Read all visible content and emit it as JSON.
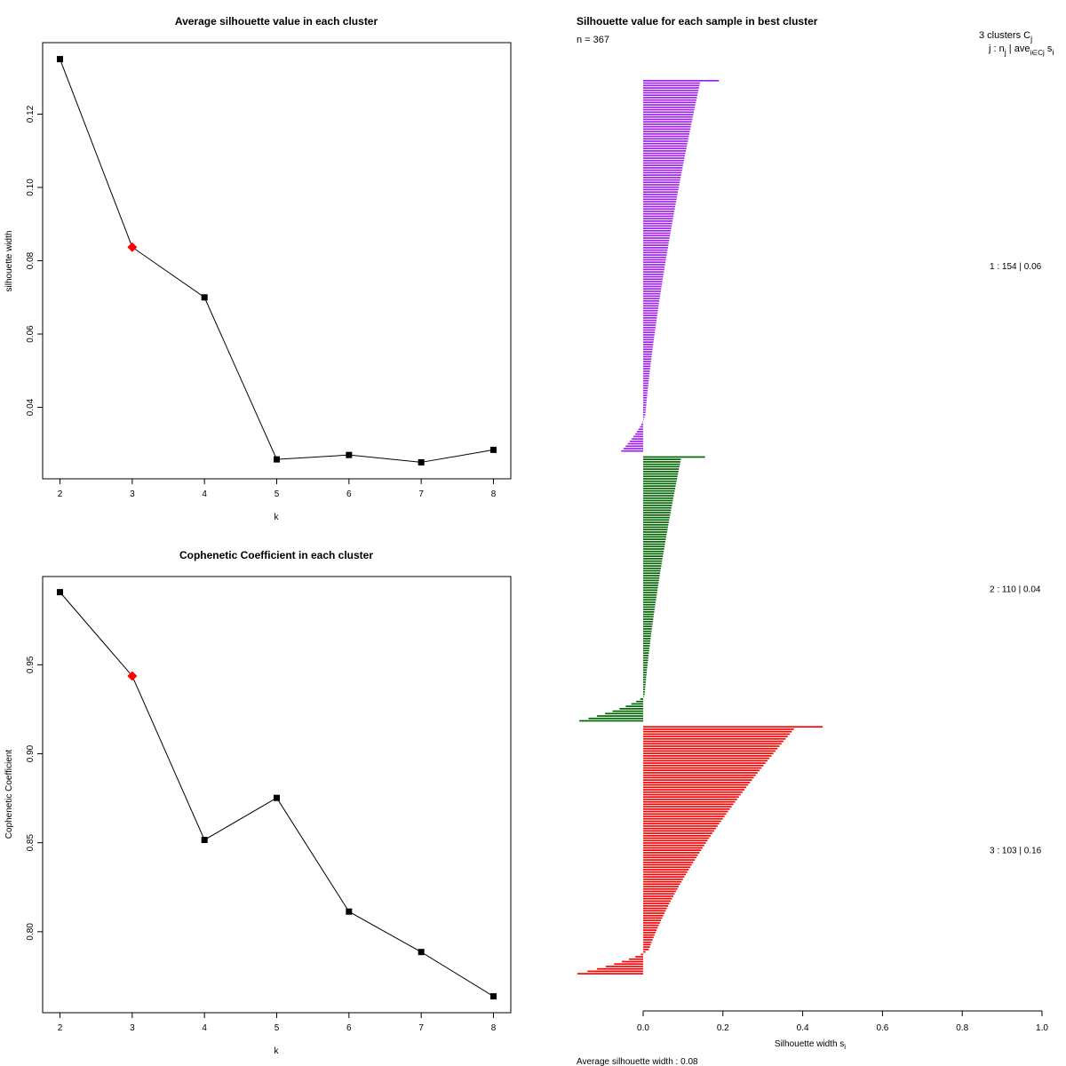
{
  "chart_data": [
    {
      "type": "line",
      "title": "Average silhouette value in each cluster",
      "xlabel": "k",
      "ylabel": "silhouette width",
      "x": [
        2,
        3,
        4,
        5,
        6,
        7,
        8
      ],
      "y": [
        0.135,
        0.0837,
        0.07,
        0.0258,
        0.027,
        0.025,
        0.0284
      ],
      "highlight_index": 1,
      "highlight_color": "#ff0000",
      "point_color": "#000000",
      "xlim": [
        1.76,
        8.24
      ],
      "ylim": [
        0.0205,
        0.1395
      ],
      "x_ticks": [
        "2",
        "3",
        "4",
        "5",
        "6",
        "7",
        "8"
      ],
      "y_ticks": [
        "0.04",
        "0.06",
        "0.08",
        "0.10",
        "0.12"
      ]
    },
    {
      "type": "line",
      "title": "Cophenetic Coefficient in each cluster",
      "xlabel": "k",
      "ylabel": "Cophenetic Coefficient",
      "x": [
        2,
        3,
        4,
        5,
        6,
        7,
        8
      ],
      "y": [
        0.9908,
        0.9437,
        0.8516,
        0.8752,
        0.8113,
        0.7886,
        0.7637
      ],
      "highlight_index": 1,
      "highlight_color": "#ff0000",
      "point_color": "#000000",
      "xlim": [
        1.76,
        8.24
      ],
      "ylim": [
        0.7545,
        0.9996
      ],
      "x_ticks": [
        "2",
        "3",
        "4",
        "5",
        "6",
        "7",
        "8"
      ],
      "y_ticks": [
        "0.80",
        "0.85",
        "0.90",
        "0.95"
      ]
    },
    {
      "type": "bar",
      "orientation": "horizontal",
      "title": "Silhouette value for each sample in best cluster",
      "n_label": "n = 367",
      "xlabel": "Silhouette width s",
      "xlabel_sub": "i",
      "xlim": [
        0,
        1
      ],
      "x_ticks": [
        "0.0",
        "0.2",
        "0.4",
        "0.6",
        "0.8",
        "1.0"
      ],
      "footer": "Average silhouette width :  0.08",
      "legend_header": {
        "line1": "3  clusters  C",
        "line1_sub": "j",
        "line2": "j :  n",
        "line2_sub": "j",
        "line2_mid": " | ave",
        "line2_mid_sub": "i∈Cj",
        "line2_tail": " s",
        "line2_tail_sub": "i"
      },
      "clusters": [
        {
          "label": "1 :   154  |  0.06",
          "n": 154,
          "avg": 0.06,
          "color": "#a020f0",
          "max": 0.19,
          "min": -0.055
        },
        {
          "label": "2 :   110  |  0.04",
          "n": 110,
          "avg": 0.04,
          "color": "#006400",
          "max": 0.155,
          "min": -0.16
        },
        {
          "label": "3 :   103  |  0.16",
          "n": 103,
          "avg": 0.16,
          "color": "#ff0000",
          "max": 0.45,
          "min": -0.165
        }
      ]
    }
  ]
}
